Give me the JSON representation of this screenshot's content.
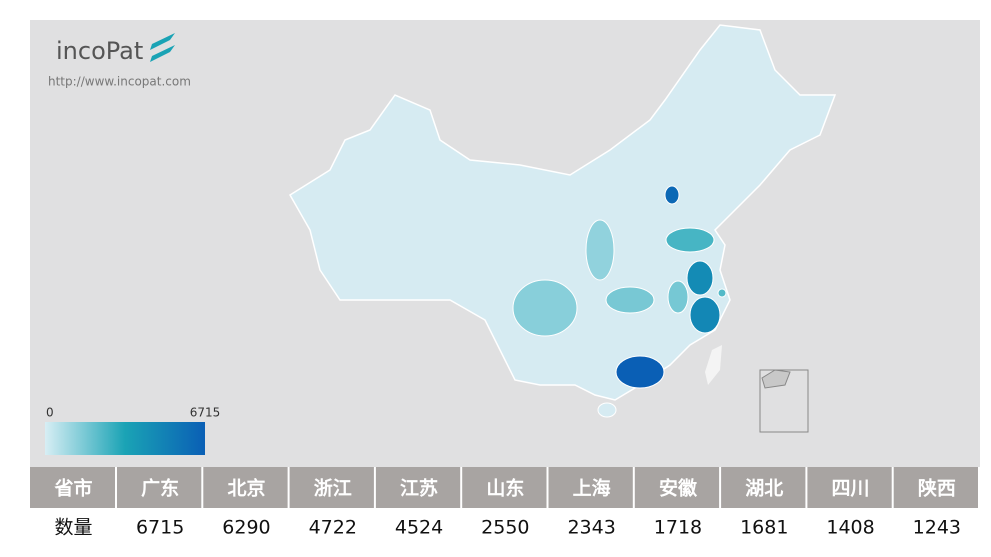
{
  "header": {
    "logo": "incoPat",
    "url": "http://www.incopat.com"
  },
  "legend": {
    "min": 0,
    "max": 6715
  },
  "table": {
    "header": [
      "省市",
      "广东",
      "北京",
      "浙江",
      "江苏",
      "山东",
      "上海",
      "安徽",
      "湖北",
      "四川",
      "陕西"
    ],
    "rows": [
      [
        "数量",
        6715,
        6290,
        4722,
        4524,
        2550,
        2343,
        1718,
        1681,
        1408,
        1243
      ]
    ]
  }
}
